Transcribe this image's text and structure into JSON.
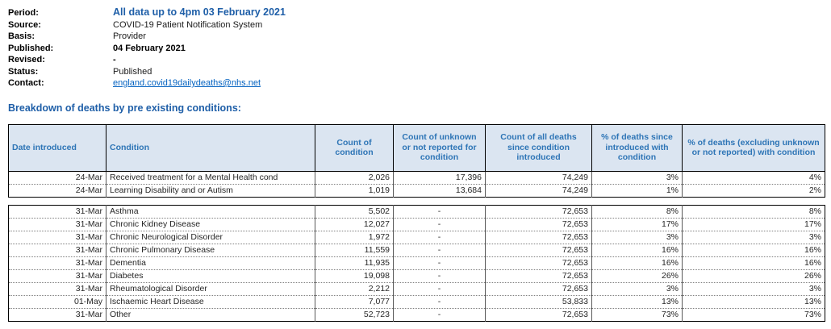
{
  "meta": {
    "fields": [
      {
        "label": "Period:",
        "value": "All data up to 4pm 03 February 2021"
      },
      {
        "label": "Source:",
        "value": "COVID-19 Patient Notification System"
      },
      {
        "label": "Basis:",
        "value": "Provider"
      },
      {
        "label": "Published:",
        "value": "04 February 2021"
      },
      {
        "label": "Revised:",
        "value": "-"
      },
      {
        "label": "Status:",
        "value": "Published"
      },
      {
        "label": "Contact:",
        "value": "england.covid19dailydeaths@nhs.net"
      }
    ]
  },
  "section_title": "Breakdown of deaths by pre existing conditions:",
  "table": {
    "columns": [
      "Date introduced",
      "Condition",
      "Count of condition",
      "Count of unknown or not reported for condition",
      "Count of all deaths since condition introduced",
      "% of deaths since introduced with condition",
      "% of deaths (excluding unknown or not reported) with condition"
    ],
    "groups": [
      {
        "rows": [
          [
            "24-Mar",
            "Received treatment for a Mental Health cond",
            "2,026",
            "17,396",
            "74,249",
            "3%",
            "4%"
          ],
          [
            "24-Mar",
            "Learning Disability and or Autism",
            "1,019",
            "13,684",
            "74,249",
            "1%",
            "2%"
          ]
        ]
      },
      {
        "rows": [
          [
            "31-Mar",
            "Asthma",
            "5,502",
            "-",
            "72,653",
            "8%",
            "8%"
          ],
          [
            "31-Mar",
            "Chronic Kidney Disease",
            "12,027",
            "-",
            "72,653",
            "17%",
            "17%"
          ],
          [
            "31-Mar",
            "Chronic Neurological Disorder",
            "1,972",
            "-",
            "72,653",
            "3%",
            "3%"
          ],
          [
            "31-Mar",
            "Chronic Pulmonary Disease",
            "11,559",
            "-",
            "72,653",
            "16%",
            "16%"
          ],
          [
            "31-Mar",
            "Dementia",
            "11,935",
            "-",
            "72,653",
            "16%",
            "16%"
          ],
          [
            "31-Mar",
            "Diabetes",
            "19,098",
            "-",
            "72,653",
            "26%",
            "26%"
          ],
          [
            "31-Mar",
            "Rheumatological Disorder",
            "2,212",
            "-",
            "72,653",
            "3%",
            "3%"
          ],
          [
            "01-May",
            "Ischaemic Heart Disease",
            "7,077",
            "-",
            "53,833",
            "13%",
            "13%"
          ],
          [
            "31-Mar",
            "Other",
            "52,723",
            "-",
            "72,653",
            "73%",
            "73%"
          ]
        ]
      }
    ]
  },
  "colors": {
    "title_blue": "#1F5FA8",
    "header_text_blue": "#2E75B6",
    "header_bg": "#DBE5F1",
    "link_blue": "#0563C1"
  }
}
